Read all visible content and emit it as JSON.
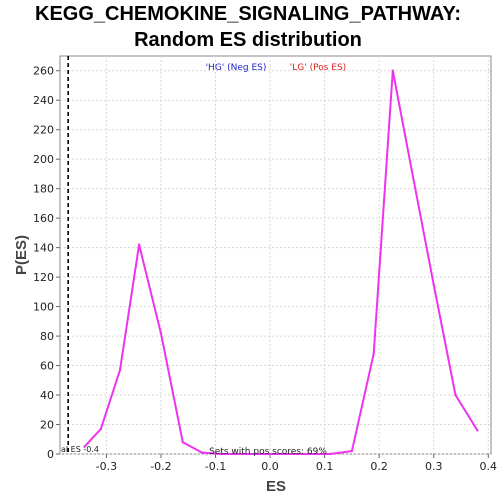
{
  "chart_data": {
    "type": "line",
    "title": "KEGG_CHEMOKINE_SIGNALING_PATHWAY:",
    "subtitle": "Random ES distribution",
    "xlabel": "ES",
    "ylabel": "P(ES)",
    "xlim": [
      -0.385,
      0.405
    ],
    "ylim": [
      0,
      270
    ],
    "xticks": [
      -0.3,
      -0.2,
      -0.1,
      0.0,
      0.1,
      0.2,
      0.3,
      0.4
    ],
    "xtick_labels": [
      "-0.3",
      "-0.2",
      "-0.1",
      "0.0",
      "0.1",
      "0.2",
      "0.3",
      "0.4"
    ],
    "yticks": [
      0,
      20,
      40,
      60,
      80,
      100,
      120,
      140,
      160,
      180,
      200,
      220,
      240,
      260
    ],
    "ytick_labels": [
      "0",
      "20",
      "40",
      "60",
      "80",
      "100",
      "120",
      "140",
      "160",
      "180",
      "200",
      "220",
      "240",
      "260"
    ],
    "grid": true,
    "series": [
      {
        "color": "#ee33ee",
        "x": [
          -0.34,
          -0.31,
          -0.275,
          -0.24,
          -0.2,
          -0.16,
          -0.125,
          -0.09,
          -0.05,
          -0.01,
          0.03,
          0.07,
          0.11,
          0.15,
          0.19,
          0.225,
          0.26,
          0.3,
          0.34,
          0.38
        ],
        "y": [
          5,
          17,
          57,
          142,
          82,
          8,
          1,
          0,
          0,
          0,
          0,
          0,
          0,
          2,
          68,
          260,
          192,
          115,
          40,
          16
        ]
      }
    ],
    "actual_es_line": {
      "x": -0.37,
      "label": "al ES -0.4"
    },
    "legend": {
      "neg": {
        "text": "'HG' (Neg ES)",
        "color": "#2222cc"
      },
      "pos": {
        "text": "'LG' (Pos ES)",
        "color": "#dd2222"
      }
    },
    "annotation": "Sets with pos scores: 69%"
  }
}
